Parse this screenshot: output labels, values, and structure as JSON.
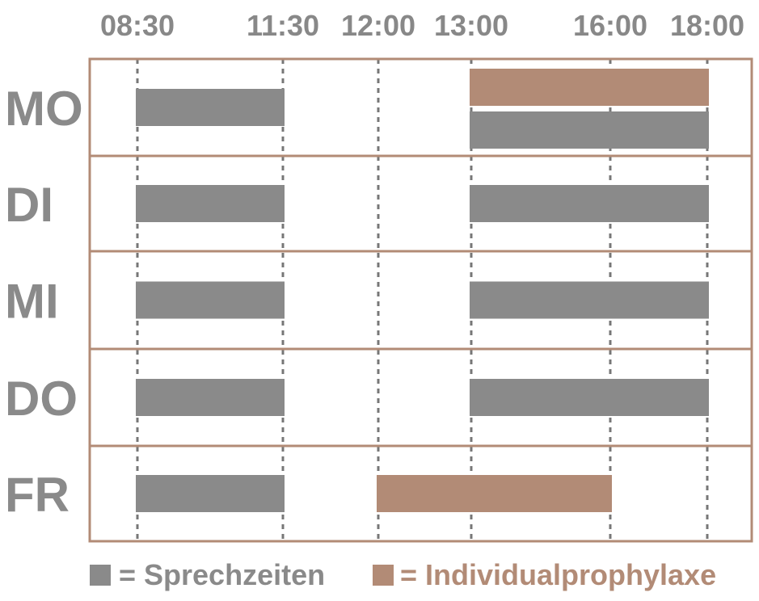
{
  "chart_data": {
    "type": "bar",
    "orientation": "horizontal-timeline",
    "x_ticks": [
      "08:30",
      "11:30",
      "12:00",
      "13:00",
      "16:00",
      "18:00"
    ],
    "xlim": [
      "08:30",
      "18:00"
    ],
    "grid": "dashed vertical lines at tick times",
    "legend_placement": "bottom",
    "categories": [
      "MO",
      "DI",
      "MI",
      "DO",
      "FR"
    ],
    "series": [
      {
        "name": "Sprechzeiten",
        "color": "#8a8a8a",
        "intervals": [
          {
            "day": "MO",
            "start": "08:30",
            "end": "11:30"
          },
          {
            "day": "MO",
            "start": "13:00",
            "end": "18:00"
          },
          {
            "day": "DI",
            "start": "08:30",
            "end": "11:30"
          },
          {
            "day": "DI",
            "start": "13:00",
            "end": "18:00"
          },
          {
            "day": "MI",
            "start": "08:30",
            "end": "11:30"
          },
          {
            "day": "MI",
            "start": "13:00",
            "end": "18:00"
          },
          {
            "day": "DO",
            "start": "08:30",
            "end": "11:30"
          },
          {
            "day": "DO",
            "start": "13:00",
            "end": "18:00"
          },
          {
            "day": "FR",
            "start": "08:30",
            "end": "11:30"
          }
        ]
      },
      {
        "name": "Individualprophylaxe",
        "color": "#b28b76",
        "intervals": [
          {
            "day": "MO",
            "start": "13:00",
            "end": "18:00"
          },
          {
            "day": "FR",
            "start": "12:00",
            "end": "16:00"
          }
        ]
      }
    ]
  },
  "legend": [
    {
      "label": "= Sprechzeiten",
      "color": "#8a8a8a"
    },
    {
      "label": "= Individualprophylaxe",
      "color": "#b28b76"
    }
  ],
  "colors": {
    "frame": "#b28b76",
    "grid": "#777777",
    "tick_text": "#888888",
    "day_text": "#8a8a8a"
  }
}
